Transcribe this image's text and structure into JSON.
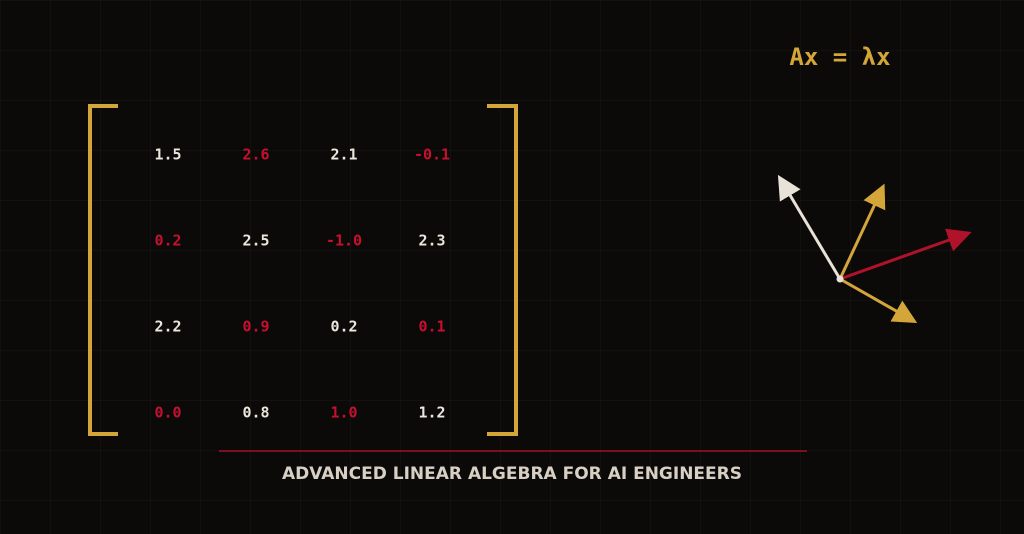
{
  "equation": "Ax = λx",
  "matrix": {
    "rows": [
      [
        "1.5",
        "2.6",
        "2.1",
        "-0.1"
      ],
      [
        "0.2",
        "2.5",
        "-1.0",
        "2.3"
      ],
      [
        "2.2",
        "0.9",
        "0.2",
        "0.1"
      ],
      [
        "0.0",
        "0.8",
        "1.0",
        "1.2"
      ]
    ]
  },
  "caption": "ADVANCED LINEAR ALGEBRA FOR AI ENGINEERS"
}
